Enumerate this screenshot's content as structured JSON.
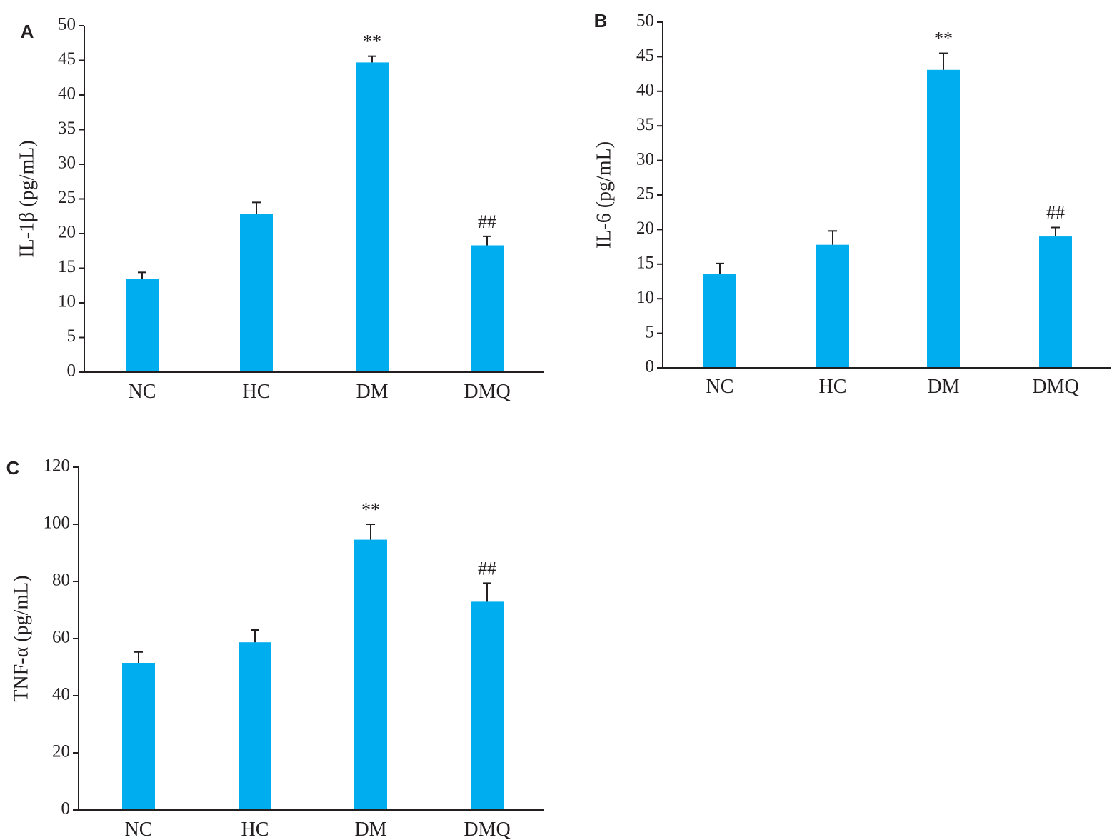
{
  "colors": {
    "bar": "#00aeef",
    "axis": "#231f20"
  },
  "chart_data": [
    {
      "panel": "A",
      "type": "bar",
      "categories": [
        "NC",
        "HC",
        "DM",
        "DMQ"
      ],
      "values": [
        13.5,
        22.8,
        44.7,
        18.3
      ],
      "errors": [
        0.9,
        1.7,
        0.9,
        1.3
      ],
      "annotations": [
        "",
        "",
        "**",
        "##"
      ],
      "ylabel": "IL-1β (pg/mL)",
      "xlabel": "",
      "ylim": [
        0,
        50
      ],
      "yticks": [
        0,
        5,
        10,
        15,
        20,
        25,
        30,
        35,
        40,
        45,
        50
      ],
      "grid": false
    },
    {
      "panel": "B",
      "type": "bar",
      "categories": [
        "NC",
        "HC",
        "DM",
        "DMQ"
      ],
      "values": [
        13.6,
        17.8,
        43.1,
        19.0
      ],
      "errors": [
        1.5,
        2.0,
        2.4,
        1.3
      ],
      "annotations": [
        "",
        "",
        "**",
        "##"
      ],
      "ylabel": "IL-6 (pg/mL)",
      "xlabel": "",
      "ylim": [
        0,
        50
      ],
      "yticks": [
        0,
        5,
        10,
        15,
        20,
        25,
        30,
        35,
        40,
        45,
        50
      ],
      "grid": false
    },
    {
      "panel": "C",
      "type": "bar",
      "categories": [
        "NC",
        "HC",
        "DM",
        "DMQ"
      ],
      "values": [
        51.5,
        58.7,
        94.6,
        72.9
      ],
      "errors": [
        3.8,
        4.3,
        5.4,
        6.5
      ],
      "annotations": [
        "",
        "",
        "**",
        "##"
      ],
      "ylabel": "TNF-α (pg/mL)",
      "xlabel": "",
      "ylim": [
        0,
        120
      ],
      "yticks": [
        0,
        20,
        40,
        60,
        80,
        100,
        120
      ],
      "grid": false
    }
  ]
}
